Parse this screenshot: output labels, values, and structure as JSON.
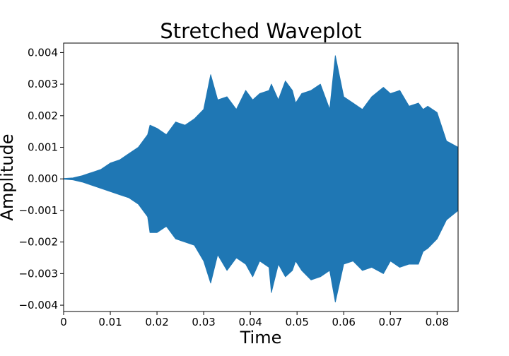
{
  "chart_data": {
    "type": "line",
    "title": "Stretched Waveplot",
    "xlabel": "Time",
    "ylabel": "Amplitude",
    "xlim": [
      0,
      0.0845
    ],
    "ylim": [
      -0.0042,
      0.0043
    ],
    "grid": false,
    "legend": "none",
    "x_ticks": [
      0,
      0.01,
      0.02,
      0.03,
      0.04,
      0.05,
      0.06,
      0.07,
      0.08
    ],
    "x_tick_labels": [
      "0",
      "0.01",
      "0.02",
      "0.03",
      "0.04",
      "0.05",
      "0.06",
      "0.07",
      "0.08"
    ],
    "y_ticks": [
      0.004,
      0.003,
      0.002,
      0.001,
      0.0,
      -0.001,
      -0.002,
      -0.003,
      -0.004
    ],
    "y_tick_labels": [
      "0.004",
      "0.003",
      "0.002",
      "0.001",
      "0.000",
      "−0.001",
      "−0.002",
      "−0.003",
      "−0.004"
    ],
    "series": [
      {
        "color": "#1f77b4",
        "envelope": {
          "x": [
            0,
            0.002,
            0.004,
            0.006,
            0.008,
            0.01,
            0.012,
            0.014,
            0.016,
            0.018,
            0.0185,
            0.02,
            0.022,
            0.024,
            0.026,
            0.028,
            0.03,
            0.0315,
            0.033,
            0.035,
            0.037,
            0.039,
            0.0405,
            0.042,
            0.044,
            0.0445,
            0.046,
            0.0475,
            0.049,
            0.0497,
            0.051,
            0.053,
            0.055,
            0.057,
            0.0582,
            0.06,
            0.062,
            0.064,
            0.066,
            0.0685,
            0.07,
            0.072,
            0.074,
            0.076,
            0.077,
            0.078,
            0.08,
            0.082,
            0.0845
          ],
          "max": [
            1e-05,
            3e-05,
            0.0001,
            0.0002,
            0.0003,
            0.0005,
            0.0006,
            0.0008,
            0.001,
            0.0014,
            0.0017,
            0.0016,
            0.0014,
            0.0018,
            0.0017,
            0.0019,
            0.0022,
            0.0033,
            0.0025,
            0.0026,
            0.0022,
            0.0028,
            0.0025,
            0.0027,
            0.0028,
            0.003,
            0.0025,
            0.0031,
            0.0028,
            0.0024,
            0.0027,
            0.0028,
            0.003,
            0.0022,
            0.0039,
            0.0026,
            0.0024,
            0.0022,
            0.0026,
            0.0029,
            0.0027,
            0.0028,
            0.0023,
            0.0024,
            0.0022,
            0.0023,
            0.0021,
            0.0012,
            0.001
          ],
          "min": [
            -1e-05,
            -3e-05,
            -0.0001,
            -0.0002,
            -0.0003,
            -0.0004,
            -0.0005,
            -0.0006,
            -0.0008,
            -0.0012,
            -0.0017,
            -0.0017,
            -0.0015,
            -0.0019,
            -0.002,
            -0.0021,
            -0.0026,
            -0.0033,
            -0.0024,
            -0.0029,
            -0.0025,
            -0.0027,
            -0.0031,
            -0.0026,
            -0.0028,
            -0.0036,
            -0.0027,
            -0.0031,
            -0.0029,
            -0.0026,
            -0.0029,
            -0.0032,
            -0.0031,
            -0.0029,
            -0.0039,
            -0.0027,
            -0.0026,
            -0.0029,
            -0.0028,
            -0.003,
            -0.0026,
            -0.0028,
            -0.0027,
            -0.0027,
            -0.0023,
            -0.0022,
            -0.0019,
            -0.0013,
            -0.001
          ]
        }
      }
    ]
  }
}
